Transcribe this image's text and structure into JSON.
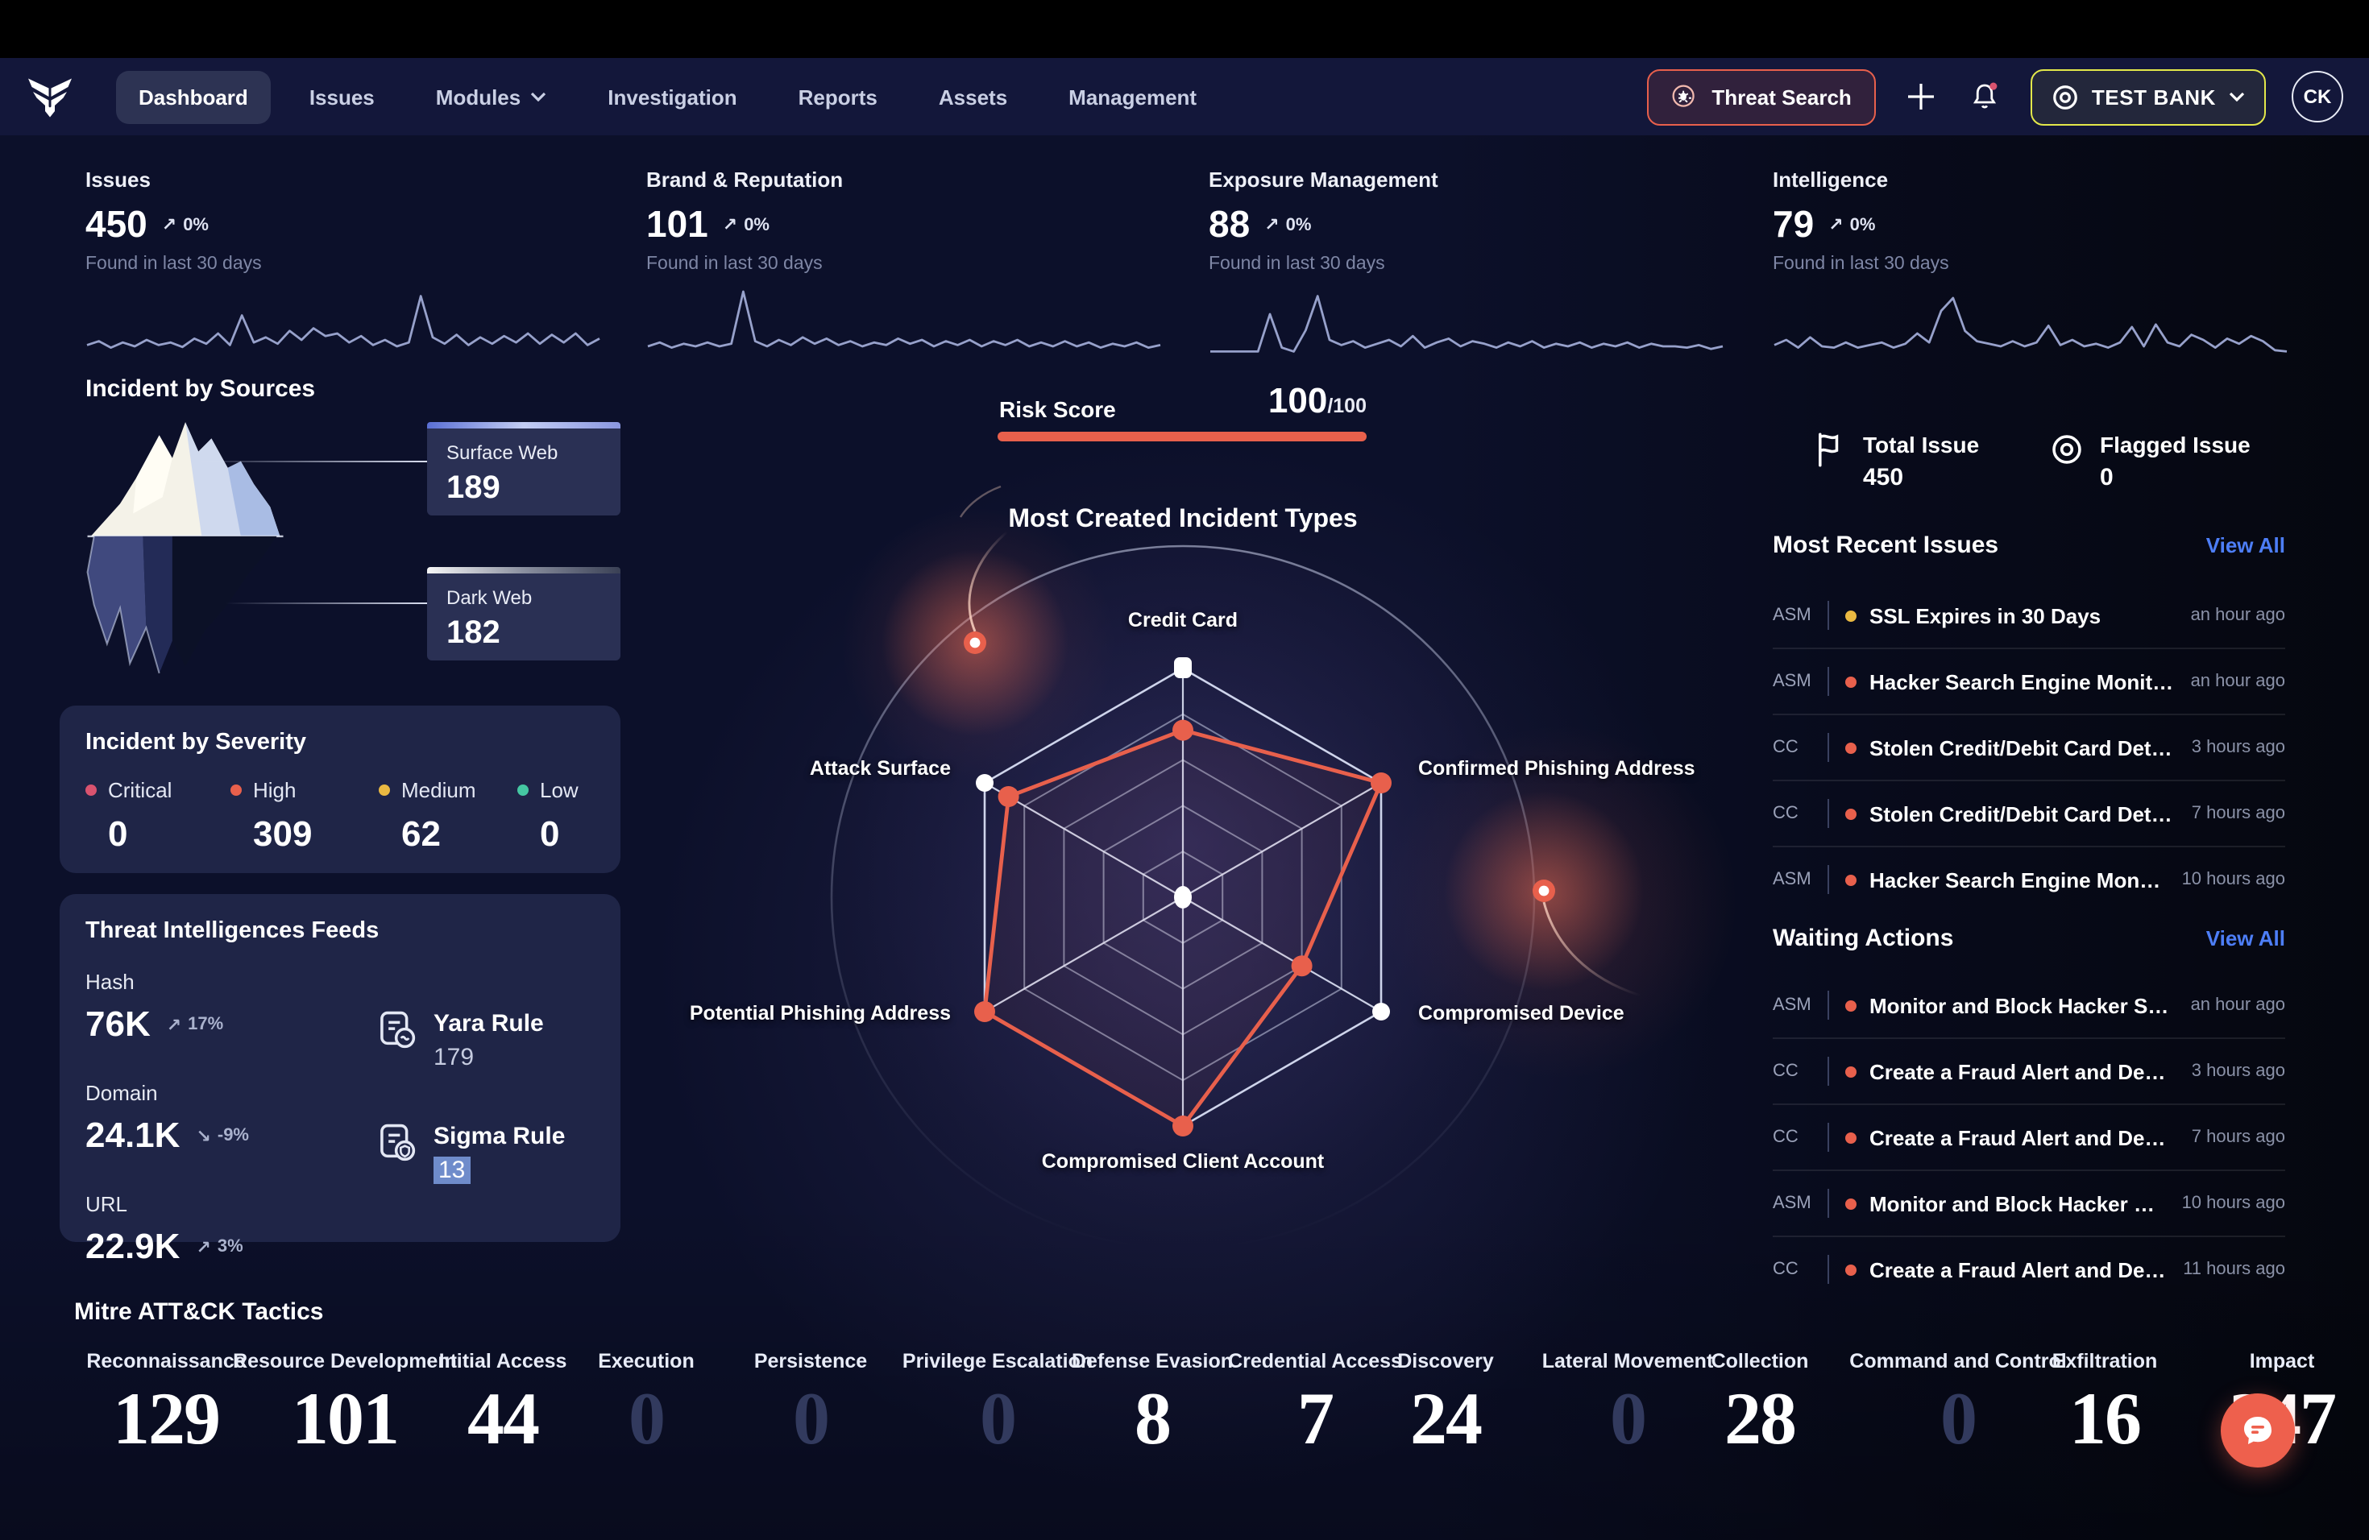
{
  "palette": {
    "accent": "#e8604c",
    "link_blue": "#4d7ef7",
    "yellow": "#eab942",
    "teal": "#45c7a2",
    "pink": "#d9536f",
    "bg": "#0c102a"
  },
  "nav": {
    "items": [
      {
        "label": "Dashboard"
      },
      {
        "label": "Issues"
      },
      {
        "label": "Modules"
      },
      {
        "label": "Investigation"
      },
      {
        "label": "Reports"
      },
      {
        "label": "Assets"
      },
      {
        "label": "Management"
      }
    ]
  },
  "topbar": {
    "threat_search_label": "Threat Search",
    "org_label": "TEST BANK",
    "avatar_initials": "CK"
  },
  "stats": [
    {
      "label": "Issues",
      "value": "450",
      "arrow": "↗",
      "trend": "0%",
      "caption": "Found in last 30 days"
    },
    {
      "label": "Brand & Reputation",
      "value": "101",
      "arrow": "↗",
      "trend": "0%",
      "caption": "Found in last 30 days"
    },
    {
      "label": "Exposure Management",
      "value": "88",
      "arrow": "↗",
      "trend": "0%",
      "caption": "Found in last 30 days"
    },
    {
      "label": "Intelligence",
      "value": "79",
      "arrow": "↗",
      "trend": "0%",
      "caption": "Found in last 30 days"
    }
  ],
  "sources": {
    "title": "Incident by Sources",
    "cards": [
      {
        "label": "Surface Web",
        "value": "189"
      },
      {
        "label": "Dark Web",
        "value": "182"
      }
    ]
  },
  "severity": {
    "title": "Incident by Severity",
    "items": [
      {
        "label": "Critical",
        "value": "0",
        "color": "#d9536f"
      },
      {
        "label": "High",
        "value": "309",
        "color": "#e8604c"
      },
      {
        "label": "Medium",
        "value": "62",
        "color": "#eab942"
      },
      {
        "label": "Low",
        "value": "0",
        "color": "#45c7a2"
      }
    ]
  },
  "feeds": {
    "title": "Threat Intelligences Feeds",
    "metrics": [
      {
        "label": "Hash",
        "value": "76K",
        "arrow": "↗",
        "trend": "17%"
      },
      {
        "label": "Domain",
        "value": "24.1K",
        "arrow": "↘",
        "trend": "-9%"
      },
      {
        "label": "URL",
        "value": "22.9K",
        "arrow": "↗",
        "trend": "3%"
      }
    ],
    "rules": [
      {
        "label": "Yara Rule",
        "value": "179"
      },
      {
        "label": "Sigma Rule",
        "value": "13"
      }
    ]
  },
  "risk": {
    "label": "Risk Score",
    "value": "100",
    "max": "/100"
  },
  "summary": {
    "total": {
      "label": "Total Issue",
      "value": "450"
    },
    "flagged": {
      "label": "Flagged Issue",
      "value": "0"
    }
  },
  "recent": {
    "title": "Most Recent Issues",
    "view_all": "View All",
    "items": [
      {
        "tag": "ASM",
        "color": "#eab942",
        "title": "SSL Expires in 30 Days",
        "time": "an hour ago"
      },
      {
        "tag": "ASM",
        "color": "#e8604c",
        "title": "Hacker Search Engine Monitoring ...",
        "time": "an hour ago"
      },
      {
        "tag": "CC",
        "color": "#e8604c",
        "title": "Stolen Credit/Debit Card Detection",
        "time": "3 hours ago"
      },
      {
        "tag": "CC",
        "color": "#e8604c",
        "title": "Stolen Credit/Debit Card Detection",
        "time": "7 hours ago"
      },
      {
        "tag": "ASM",
        "color": "#e8604c",
        "title": "Hacker Search Engine Monitoring ...",
        "time": "10 hours ago"
      }
    ]
  },
  "waiting": {
    "title": "Waiting Actions",
    "view_all": "View All",
    "items": [
      {
        "tag": "ASM",
        "color": "#e8604c",
        "title": "Monitor and Block Hacker Search ...",
        "time": "an hour ago"
      },
      {
        "tag": "CC",
        "color": "#e8604c",
        "title": "Create a Fraud Alert and Deactiva...",
        "time": "3 hours ago"
      },
      {
        "tag": "CC",
        "color": "#e8604c",
        "title": "Create a Fraud Alert and Deactiva...",
        "time": "7 hours ago"
      },
      {
        "tag": "ASM",
        "color": "#e8604c",
        "title": "Monitor and Block Hacker Search ...",
        "time": "10 hours ago"
      },
      {
        "tag": "CC",
        "color": "#e8604c",
        "title": "Create a Fraud Alert and Deactiva...",
        "time": "11 hours ago"
      }
    ]
  },
  "mitre": {
    "title": "Mitre ATT&CK Tactics",
    "tactics": [
      {
        "label": "Reconnaissance",
        "value": "129",
        "color": "#ffffff"
      },
      {
        "label": "Resource Development",
        "value": "101",
        "color": "#ffffff"
      },
      {
        "label": "Initial Access",
        "value": "44",
        "color": "#ffffff"
      },
      {
        "label": "Execution",
        "value": "0",
        "color": "#323a5e"
      },
      {
        "label": "Persistence",
        "value": "0",
        "color": "#323a5e"
      },
      {
        "label": "Privilege Escalation",
        "value": "0",
        "color": "#323a5e"
      },
      {
        "label": "Defense Evasion",
        "value": "8",
        "color": "#ffffff"
      },
      {
        "label": "Credential Access",
        "value": "7",
        "color": "#ffffff"
      },
      {
        "label": "Discovery",
        "value": "24",
        "color": "#ffffff"
      },
      {
        "label": "Lateral Movement",
        "value": "0",
        "color": "#323a5e"
      },
      {
        "label": "Collection",
        "value": "28",
        "color": "#ffffff"
      },
      {
        "label": "Command and Control",
        "value": "0",
        "color": "#323a5e"
      },
      {
        "label": "Exfiltration",
        "value": "16",
        "color": "#ffffff"
      },
      {
        "label": "Impact",
        "value": "247",
        "color": "#ffffff"
      }
    ]
  },
  "chart_data": [
    {
      "type": "line",
      "name": "issues-sparkline",
      "ylim": [
        0,
        100
      ],
      "values": [
        12,
        18,
        8,
        16,
        10,
        20,
        12,
        16,
        9,
        22,
        14,
        30,
        12,
        58,
        16,
        24,
        14,
        34,
        20,
        38,
        26,
        30,
        16,
        26,
        12,
        20,
        10,
        16,
        88,
        24,
        14,
        28,
        12,
        24,
        14,
        26,
        16,
        30,
        14,
        28,
        16,
        30,
        12,
        22
      ]
    },
    {
      "type": "line",
      "name": "brand-reputation-sparkline",
      "ylim": [
        0,
        100
      ],
      "values": [
        10,
        16,
        8,
        14,
        10,
        16,
        10,
        14,
        95,
        18,
        10,
        20,
        12,
        24,
        14,
        22,
        12,
        18,
        10,
        16,
        12,
        22,
        14,
        20,
        10,
        18,
        12,
        20,
        10,
        18,
        12,
        20,
        10,
        16,
        10,
        18,
        10,
        16,
        8,
        14,
        10,
        16,
        8,
        12
      ]
    },
    {
      "type": "line",
      "name": "exposure-management-sparkline",
      "ylim": [
        0,
        100
      ],
      "values": [
        2,
        2,
        2,
        2,
        2,
        60,
        8,
        2,
        35,
        88,
        20,
        12,
        18,
        8,
        14,
        20,
        10,
        26,
        8,
        16,
        22,
        10,
        18,
        14,
        8,
        16,
        10,
        18,
        8,
        14,
        10,
        16,
        8,
        14,
        10,
        16,
        8,
        14,
        10,
        10,
        8,
        12,
        6,
        10
      ]
    },
    {
      "type": "line",
      "name": "intelligence-sparkline",
      "ylim": [
        0,
        100
      ],
      "values": [
        12,
        20,
        8,
        24,
        10,
        8,
        16,
        8,
        12,
        16,
        8,
        14,
        30,
        16,
        65,
        85,
        34,
        18,
        14,
        10,
        18,
        10,
        16,
        42,
        12,
        20,
        10,
        14,
        8,
        16,
        40,
        10,
        44,
        16,
        10,
        28,
        20,
        8,
        22,
        14,
        26,
        18,
        4,
        2
      ]
    },
    {
      "type": "radar",
      "title": "Most Created Incident Types",
      "categories": [
        "Credit Card",
        "Confirmed Phishing Address",
        "Compromised Device",
        "Compromised Client Account",
        "Potential Phishing Address",
        "Attack Surface"
      ],
      "values": [
        73,
        100,
        60,
        100,
        100,
        88
      ],
      "max": 100,
      "rings": 5,
      "accent": "#e8604c",
      "outer_markers": [
        0,
        2,
        5
      ],
      "legend": false,
      "grid": true
    }
  ]
}
